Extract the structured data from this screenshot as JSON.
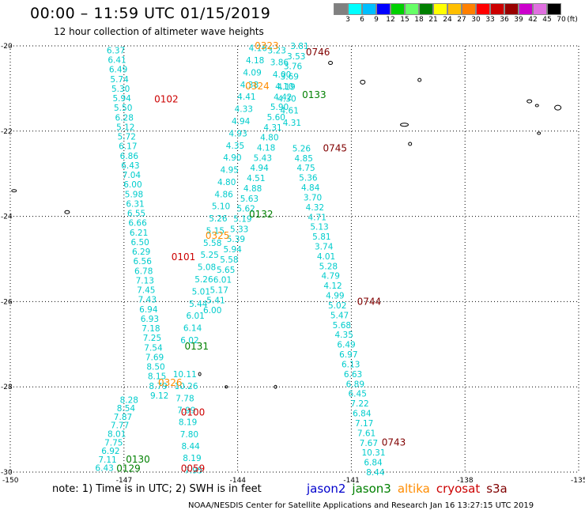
{
  "header": {
    "title": "00:00 – 11:59 UTC 01/15/2019",
    "subtitle": "12 hour collection of altimeter wave heights"
  },
  "legend": {
    "unit_label": "(ft)",
    "colors": [
      "#808080",
      "#00ffff",
      "#00bfff",
      "#0000ff",
      "#00d000",
      "#66ff66",
      "#008000",
      "#ffff00",
      "#ffbf00",
      "#ff8000",
      "#ff0000",
      "#cc0000",
      "#990000",
      "#cc00cc",
      "#e070e0",
      "#000000"
    ],
    "ticks": [
      "3",
      "6",
      "9",
      "12",
      "15",
      "18",
      "21",
      "24",
      "27",
      "30",
      "33",
      "36",
      "39",
      "42",
      "45",
      "70"
    ]
  },
  "axes": {
    "lon_labels": [
      "-150",
      "-147",
      "-144",
      "-141",
      "-138",
      "-135"
    ],
    "lat_labels": [
      "-20",
      "-22",
      "-24",
      "-26",
      "-28",
      "-30"
    ]
  },
  "satellite_colors": {
    "jason2": "#0000cc",
    "jason3": "#008000",
    "altika": "#ff8c00",
    "cryosat": "#cc0000",
    "s3a": "#800000",
    "obs": "#00cccc"
  },
  "time_labels": [
    {
      "text": "0323",
      "sat": "altika",
      "lon": -143.55,
      "lat": -20.0
    },
    {
      "text": "0746",
      "sat": "s3a",
      "lon": -142.2,
      "lat": -20.15
    },
    {
      "text": "0102",
      "sat": "cryosat",
      "lon": -146.2,
      "lat": -21.25
    },
    {
      "text": "0324",
      "sat": "altika",
      "lon": -143.8,
      "lat": -20.95
    },
    {
      "text": "0133",
      "sat": "jason3",
      "lon": -142.3,
      "lat": -21.15
    },
    {
      "text": "0745",
      "sat": "s3a",
      "lon": -141.75,
      "lat": -22.4
    },
    {
      "text": "0132",
      "sat": "jason3",
      "lon": -143.7,
      "lat": -23.95
    },
    {
      "text": "0325",
      "sat": "altika",
      "lon": -144.85,
      "lat": -24.45
    },
    {
      "text": "0101",
      "sat": "cryosat",
      "lon": -145.75,
      "lat": -24.95
    },
    {
      "text": "0744",
      "sat": "s3a",
      "lon": -140.85,
      "lat": -26.0
    },
    {
      "text": "0131",
      "sat": "jason3",
      "lon": -145.4,
      "lat": -27.05
    },
    {
      "text": "0326",
      "sat": "altika",
      "lon": -146.1,
      "lat": -27.9
    },
    {
      "text": "0100",
      "sat": "cryosat",
      "lon": -145.5,
      "lat": -28.6
    },
    {
      "text": "0743",
      "sat": "s3a",
      "lon": -140.2,
      "lat": -29.3
    },
    {
      "text": "0130",
      "sat": "jason3",
      "lon": -146.95,
      "lat": -29.7
    },
    {
      "text": "0129",
      "sat": "jason3",
      "lon": -147.2,
      "lat": -29.92
    },
    {
      "text": "0059",
      "sat": "cryosat",
      "lon": -145.5,
      "lat": -29.92
    }
  ],
  "tracks": [
    {
      "name": "track-a",
      "start": [
        -147.25,
        -20.1
      ],
      "end": [
        -146.1,
        -28.2
      ],
      "values": [
        "6.37",
        "6.41",
        "6.49",
        "5.74",
        "5.30",
        "5.94",
        "5.50",
        "6.28",
        "5.12",
        "5.72",
        "6.17",
        "6.86",
        "6.43",
        "7.04",
        "6.00",
        "5.98",
        "6.31",
        "6.55",
        "6.66",
        "6.21",
        "6.50",
        "6.29",
        "6.56",
        "6.78",
        "7.13",
        "7.45",
        "7.43",
        "6.94",
        "6.93",
        "7.18",
        "7.25",
        "7.54",
        "7.69",
        "8.50",
        "8.15",
        "8.79",
        "9.12"
      ]
    },
    {
      "name": "track-b",
      "start": [
        -143.5,
        -20.05
      ],
      "end": [
        -145.3,
        -26.9
      ],
      "values": [
        "4.16",
        "4.18",
        "4.09",
        "4.38",
        "4.41",
        "4.33",
        "4.94",
        "4.93",
        "4.35",
        "4.90",
        "4.95",
        "4.80",
        "4.86",
        "5.10",
        "5.26",
        "5.15",
        "5.58",
        "5.25",
        "5.08",
        "5.26",
        "5.01",
        "5.44",
        "6.01",
        "6.14",
        "6.02"
      ]
    },
    {
      "name": "track-c",
      "start": [
        -142.4,
        -20.0
      ],
      "end": [
        -144.7,
        -26.2
      ],
      "values": [
        "3.81",
        "3.53",
        "3.76",
        "3.69",
        "4.19",
        "4.42",
        "5.90",
        "5.60",
        "4.31",
        "4.80",
        "4.18",
        "5.43",
        "4.94",
        "4.51",
        "4.88",
        "5.63",
        "5.62",
        "5.19",
        "5.33",
        "5.39",
        "5.94",
        "5.58",
        "5.65",
        "6.01",
        "5.17",
        "5.41",
        "6.00"
      ]
    },
    {
      "name": "track-d",
      "start": [
        -143.0,
        -20.1
      ],
      "end": [
        -142.6,
        -21.8
      ],
      "values": [
        "3.23",
        "3.86",
        "4.00",
        "4.10",
        "4.30",
        "4.61",
        "4.31"
      ]
    },
    {
      "name": "track-e",
      "start": [
        -142.35,
        -22.4
      ],
      "end": [
        -140.4,
        -30.0
      ],
      "values": [
        "5.26",
        "4.85",
        "4.75",
        "5.36",
        "4.84",
        "3.70",
        "4.32",
        "4.71",
        "5.13",
        "5.81",
        "3.74",
        "4.01",
        "5.28",
        "4.79",
        "4.12",
        "4.99",
        "5.02",
        "5.47",
        "5.68",
        "4.35",
        "6.49",
        "6.97",
        "6.13",
        "6.63",
        "6.89",
        "6.45",
        "7.22",
        "6.84",
        "7.17",
        "7.61",
        "7.67",
        "10.31",
        "6.84",
        "8.44"
      ]
    },
    {
      "name": "track-f",
      "start": [
        -145.5,
        -27.7
      ],
      "end": [
        -145.2,
        -29.95
      ],
      "values": [
        "10.11",
        "10.26",
        "7.78",
        "7.99",
        "8.19",
        "7.80",
        "8.44",
        "8.19",
        "7.95"
      ]
    },
    {
      "name": "track-g",
      "start": [
        -146.9,
        -28.3
      ],
      "end": [
        -147.55,
        -29.9
      ],
      "values": [
        "8.28",
        "8.54",
        "7.87",
        "7.77",
        "8.01",
        "7.75",
        "6.92",
        "7.11",
        "6.43"
      ]
    }
  ],
  "footer": {
    "note": "note:  1) Time is in UTC;  2) SWH is in feet",
    "sat_labels": [
      {
        "key": "jason2",
        "label": "jason2"
      },
      {
        "key": "jason3",
        "label": "jason3"
      },
      {
        "key": "altika",
        "label": "altika"
      },
      {
        "key": "cryosat",
        "label": "cryosat"
      },
      {
        "key": "s3a",
        "label": "s3a"
      }
    ],
    "credit": "NOAA/NESDIS Center for Satellite Applications and Research    Jan 16 13:27:15 UTC 2019"
  }
}
